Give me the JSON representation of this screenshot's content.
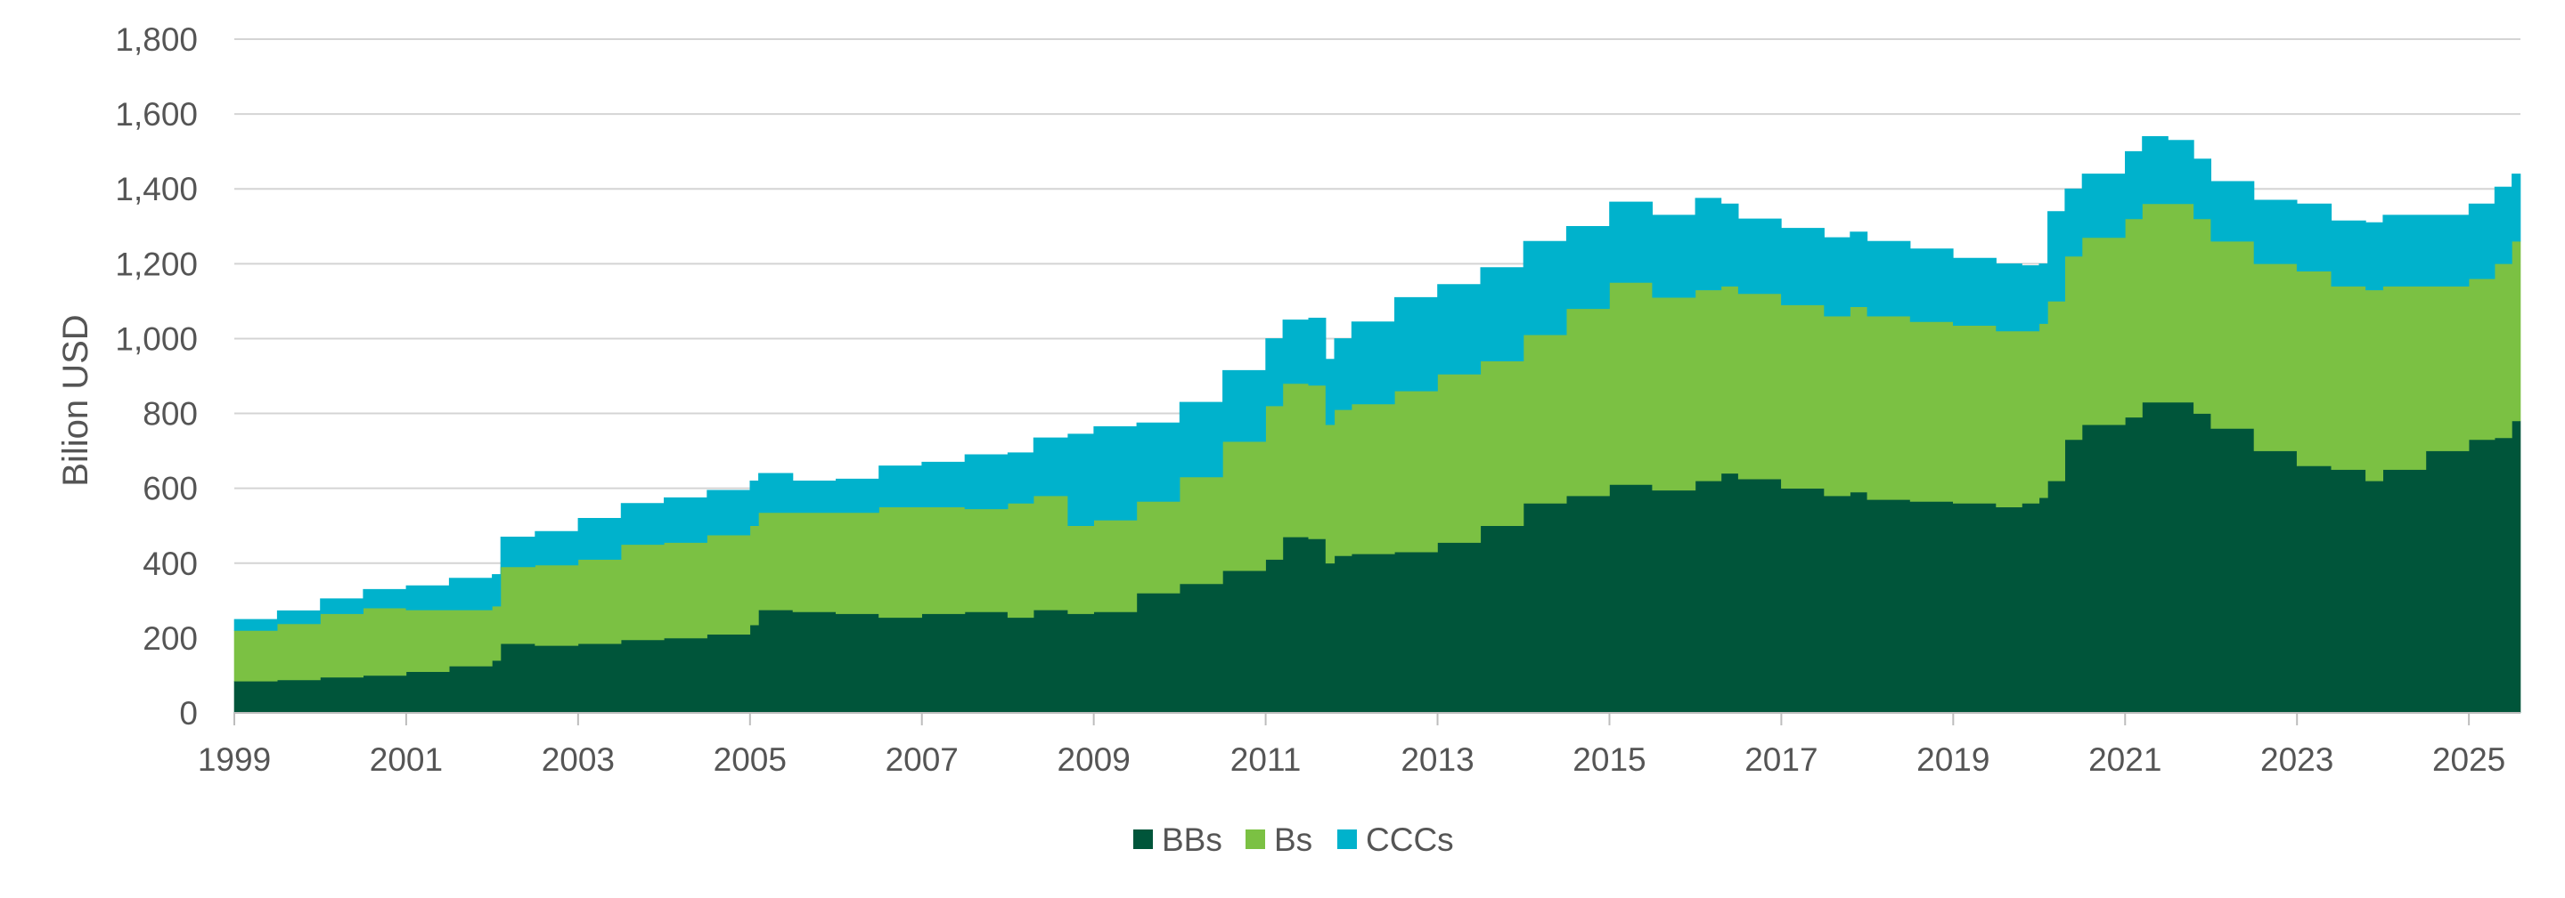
{
  "colors": {
    "BBs": "#00553a",
    "Bs": "#7bc143",
    "CCCs": "#00b2cc"
  },
  "chart_data": {
    "type": "area",
    "subtype": "stacked-step",
    "title": "",
    "xlabel": "",
    "ylabel": "Bilion USD",
    "xlim": [
      1999.0,
      2025.6
    ],
    "ylim": [
      0,
      1800
    ],
    "yticks": [
      0,
      200,
      400,
      600,
      800,
      1000,
      1200,
      1400,
      1600,
      1800
    ],
    "ytick_labels": [
      "0",
      "200",
      "400",
      "600",
      "800",
      "1,000",
      "1,200",
      "1,400",
      "1,600",
      "1,800"
    ],
    "xticks": [
      1999,
      2001,
      2003,
      2005,
      2007,
      2009,
      2011,
      2013,
      2015,
      2017,
      2019,
      2021,
      2023,
      2025
    ],
    "xtick_labels": [
      "1999",
      "2001",
      "2003",
      "2005",
      "2007",
      "2009",
      "2011",
      "2013",
      "2015",
      "2017",
      "2019",
      "2021",
      "2023",
      "2025"
    ],
    "grid": true,
    "legend_position": "bottom-center",
    "x": [
      1999.0,
      1999.5,
      2000.0,
      2000.5,
      2001.0,
      2001.5,
      2002.0,
      2002.1,
      2002.5,
      2003.0,
      2003.5,
      2004.0,
      2004.5,
      2005.0,
      2005.1,
      2005.5,
      2006.0,
      2006.5,
      2007.0,
      2007.5,
      2008.0,
      2008.3,
      2008.7,
      2009.0,
      2009.5,
      2010.0,
      2010.5,
      2011.0,
      2011.2,
      2011.5,
      2011.7,
      2011.8,
      2012.0,
      2012.5,
      2013.0,
      2013.5,
      2014.0,
      2014.5,
      2015.0,
      2015.5,
      2016.0,
      2016.3,
      2016.5,
      2017.0,
      2017.5,
      2017.8,
      2018.0,
      2018.5,
      2019.0,
      2019.5,
      2019.8,
      2020.0,
      2020.1,
      2020.3,
      2020.5,
      2021.0,
      2021.2,
      2021.5,
      2021.8,
      2022.0,
      2022.5,
      2023.0,
      2023.4,
      2023.8,
      2024.0,
      2024.5,
      2025.0,
      2025.3,
      2025.5
    ],
    "series": [
      {
        "name": "BBs",
        "values": [
          85,
          88,
          95,
          100,
          110,
          125,
          140,
          185,
          180,
          185,
          195,
          200,
          210,
          235,
          275,
          270,
          265,
          255,
          265,
          270,
          255,
          275,
          265,
          270,
          320,
          345,
          380,
          410,
          470,
          465,
          400,
          420,
          425,
          430,
          455,
          500,
          560,
          580,
          610,
          595,
          620,
          640,
          625,
          600,
          580,
          590,
          570,
          565,
          560,
          550,
          560,
          575,
          620,
          730,
          770,
          790,
          830,
          830,
          800,
          760,
          700,
          660,
          650,
          620,
          650,
          700,
          730,
          735,
          780
        ]
      },
      {
        "name": "Bs",
        "values": [
          135,
          150,
          170,
          180,
          165,
          150,
          145,
          205,
          215,
          225,
          255,
          255,
          265,
          265,
          260,
          265,
          270,
          295,
          285,
          275,
          305,
          305,
          235,
          245,
          245,
          285,
          345,
          410,
          410,
          410,
          370,
          390,
          400,
          430,
          450,
          440,
          450,
          500,
          540,
          515,
          510,
          500,
          495,
          490,
          480,
          495,
          490,
          480,
          475,
          470,
          460,
          465,
          480,
          490,
          500,
          530,
          530,
          530,
          520,
          500,
          500,
          520,
          490,
          510,
          490,
          440,
          430,
          465,
          480
        ]
      },
      {
        "name": "CCCs",
        "values": [
          30,
          35,
          40,
          50,
          65,
          85,
          85,
          80,
          90,
          110,
          110,
          120,
          120,
          120,
          105,
          85,
          90,
          110,
          120,
          145,
          135,
          155,
          245,
          250,
          210,
          200,
          190,
          180,
          170,
          180,
          175,
          190,
          220,
          250,
          240,
          250,
          250,
          220,
          215,
          220,
          245,
          220,
          200,
          205,
          210,
          200,
          200,
          195,
          180,
          180,
          175,
          160,
          240,
          180,
          170,
          180,
          180,
          170,
          160,
          160,
          170,
          180,
          175,
          180,
          190,
          190,
          200,
          205,
          180
        ]
      }
    ]
  }
}
